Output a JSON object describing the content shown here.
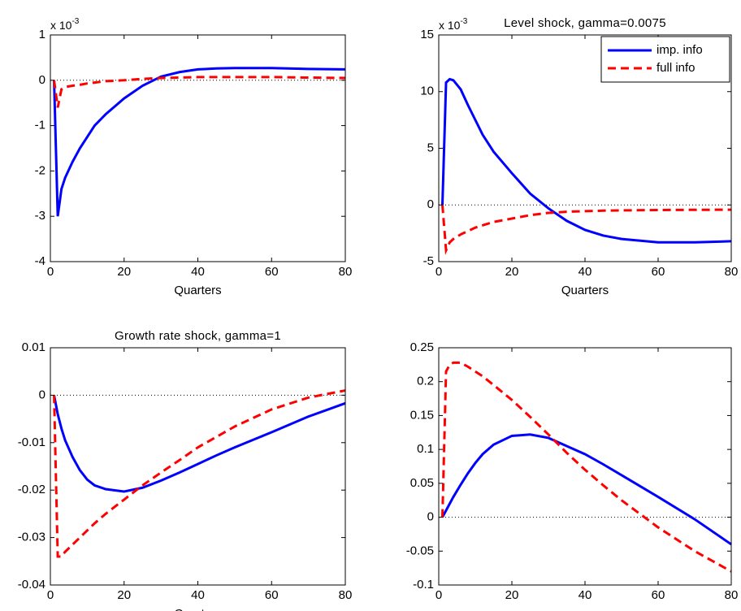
{
  "chart_data": [
    {
      "type": "line",
      "axis_multiplier": "x 10",
      "axis_multiplier_exp": "-3",
      "x_label": "Quarters",
      "x": [
        1,
        2,
        3,
        4,
        6,
        8,
        10,
        12,
        15,
        20,
        25,
        30,
        35,
        40,
        45,
        50,
        60,
        70,
        80
      ],
      "series": [
        {
          "color": "#0000ff",
          "line_style": "solid",
          "values": [
            0,
            -3.0,
            -2.4,
            -2.15,
            -1.8,
            -1.5,
            -1.25,
            -1.0,
            -0.75,
            -0.4,
            -0.12,
            0.08,
            0.18,
            0.24,
            0.26,
            0.27,
            0.27,
            0.25,
            0.24
          ]
        },
        {
          "color": "#ff0000",
          "line_style": "dashed",
          "values": [
            0,
            -0.6,
            -0.2,
            -0.15,
            -0.12,
            -0.1,
            -0.07,
            -0.05,
            -0.02,
            0.0,
            0.03,
            0.05,
            0.06,
            0.07,
            0.07,
            0.07,
            0.07,
            0.06,
            0.05
          ]
        }
      ],
      "hline": 0,
      "xlim": [
        0,
        80
      ],
      "xticks": [
        0,
        20,
        40,
        60,
        80
      ],
      "ylim": [
        -4,
        1
      ],
      "yticks": [
        -4,
        -3,
        -2,
        -1,
        0,
        1
      ]
    },
    {
      "type": "line",
      "title": "Level shock, gamma=0.0075",
      "axis_multiplier": "x 10",
      "axis_multiplier_exp": "-3",
      "x_label": "Quarters",
      "x": [
        1,
        2,
        3,
        4,
        6,
        8,
        10,
        12,
        15,
        20,
        25,
        30,
        35,
        40,
        45,
        50,
        60,
        70,
        80
      ],
      "series": [
        {
          "name": "imp. info",
          "color": "#0000ff",
          "line_style": "solid",
          "values": [
            0,
            10.8,
            11.1,
            11.0,
            10.2,
            8.8,
            7.5,
            6.2,
            4.7,
            2.8,
            1.0,
            -0.3,
            -1.4,
            -2.2,
            -2.7,
            -3.0,
            -3.3,
            -3.3,
            -3.2
          ]
        },
        {
          "name": "full info",
          "color": "#ff0000",
          "line_style": "dashed",
          "values": [
            0,
            -4.0,
            -3.3,
            -3.0,
            -2.6,
            -2.3,
            -2.0,
            -1.8,
            -1.5,
            -1.2,
            -0.9,
            -0.7,
            -0.6,
            -0.55,
            -0.5,
            -0.48,
            -0.45,
            -0.43,
            -0.42
          ]
        }
      ],
      "legend": "upper right",
      "hline": 0,
      "xlim": [
        0,
        80
      ],
      "xticks": [
        0,
        20,
        40,
        60,
        80
      ],
      "ylim": [
        -5,
        15
      ],
      "yticks": [
        -5,
        0,
        5,
        10,
        15
      ]
    },
    {
      "type": "line",
      "title": "Growth rate shock, gamma=1",
      "x_label": "Quarters",
      "x": [
        1,
        2,
        3,
        4,
        6,
        8,
        10,
        12,
        15,
        20,
        25,
        30,
        35,
        40,
        45,
        50,
        60,
        70,
        80
      ],
      "series": [
        {
          "color": "#0000ff",
          "line_style": "solid",
          "values": [
            0,
            -0.004,
            -0.007,
            -0.0095,
            -0.013,
            -0.0158,
            -0.0178,
            -0.019,
            -0.0198,
            -0.0203,
            -0.0195,
            -0.018,
            -0.0163,
            -0.0145,
            -0.0127,
            -0.011,
            -0.0078,
            -0.0045,
            -0.0017
          ]
        },
        {
          "color": "#ff0000",
          "line_style": "dashed",
          "values": [
            0,
            -0.034,
            -0.034,
            -0.033,
            -0.0315,
            -0.03,
            -0.0285,
            -0.027,
            -0.025,
            -0.022,
            -0.019,
            -0.0163,
            -0.0137,
            -0.011,
            -0.0088,
            -0.0066,
            -0.003,
            -0.0005,
            0.001
          ]
        }
      ],
      "hline": 0,
      "xlim": [
        0,
        80
      ],
      "xticks": [
        0,
        20,
        40,
        60,
        80
      ],
      "ylim": [
        -0.04,
        0.01
      ],
      "yticks": [
        -0.04,
        -0.03,
        -0.02,
        -0.01,
        0,
        0.01
      ]
    },
    {
      "type": "line",
      "x": [
        1,
        2,
        3,
        4,
        6,
        8,
        10,
        12,
        15,
        20,
        25,
        30,
        35,
        40,
        45,
        50,
        60,
        70,
        80
      ],
      "series": [
        {
          "color": "#0000ff",
          "line_style": "solid",
          "values": [
            0,
            0.01,
            0.02,
            0.03,
            0.048,
            0.065,
            0.08,
            0.093,
            0.107,
            0.12,
            0.122,
            0.117,
            0.105,
            0.093,
            0.078,
            0.062,
            0.03,
            -0.003,
            -0.04
          ]
        },
        {
          "color": "#ff0000",
          "line_style": "dashed",
          "values": [
            0,
            0.215,
            0.225,
            0.228,
            0.228,
            0.222,
            0.215,
            0.208,
            0.195,
            0.173,
            0.148,
            0.122,
            0.095,
            0.07,
            0.047,
            0.025,
            -0.015,
            -0.05,
            -0.08
          ]
        }
      ],
      "hline": 0,
      "xlim": [
        0,
        80
      ],
      "xticks": [
        0,
        20,
        40,
        60,
        80
      ],
      "ylim": [
        -0.1,
        0.25
      ],
      "yticks": [
        -0.1,
        -0.05,
        0,
        0.05,
        0.1,
        0.15,
        0.2,
        0.25
      ]
    }
  ]
}
